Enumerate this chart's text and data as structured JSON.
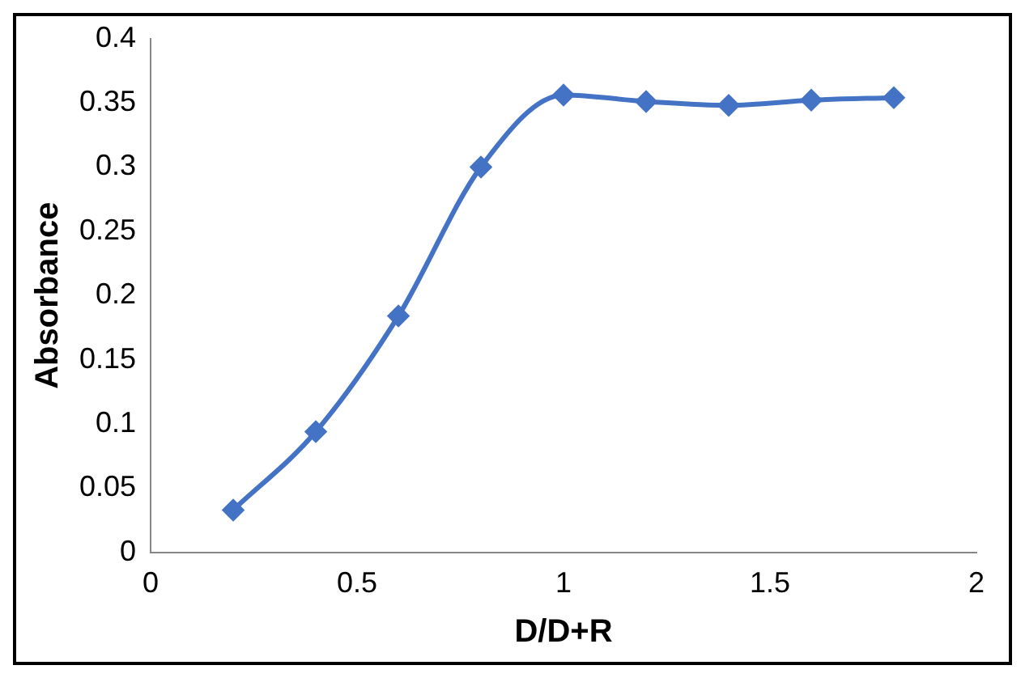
{
  "chart_data": {
    "type": "line",
    "xlabel": "D/D+R",
    "ylabel": "Absorbance",
    "x": [
      0.2,
      0.4,
      0.6,
      0.8,
      1.0,
      1.2,
      1.4,
      1.6,
      1.8
    ],
    "series": [
      {
        "color": "#4472c4",
        "values": [
          0.033,
          0.094,
          0.184,
          0.3,
          0.356,
          0.351,
          0.348,
          0.352,
          0.354
        ]
      }
    ],
    "xlim": [
      0,
      2
    ],
    "xticks": [
      0,
      0.5,
      1,
      1.5,
      2
    ],
    "ylim": [
      0,
      0.4
    ],
    "yticks": [
      0,
      0.05,
      0.1,
      0.15,
      0.2,
      0.25,
      0.3,
      0.35,
      0.4
    ],
    "grid": false,
    "legend": false,
    "marker": "diamond",
    "line_style": "solid"
  }
}
